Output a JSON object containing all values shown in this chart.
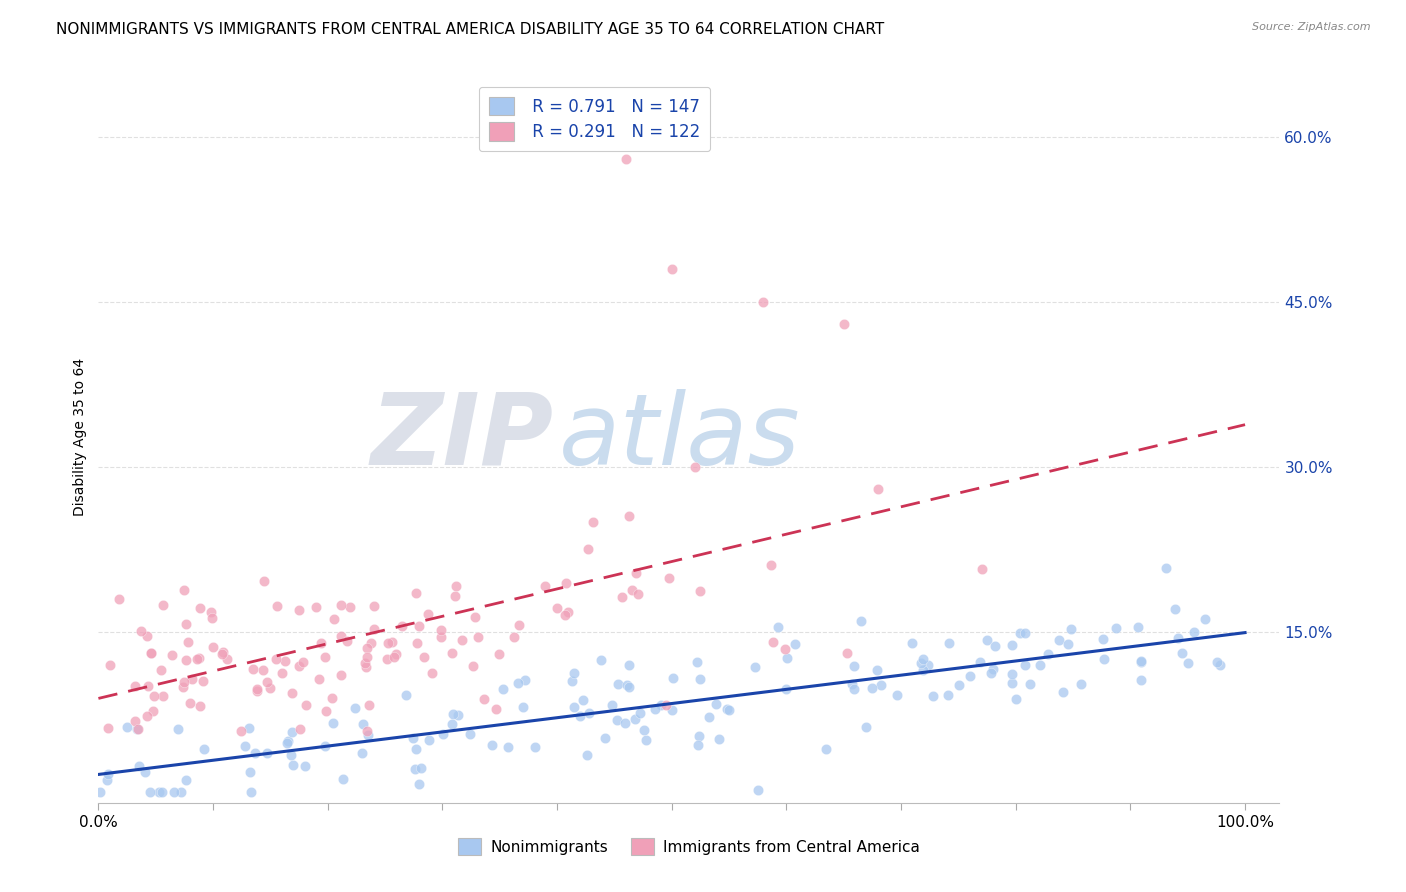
{
  "title": "NONIMMIGRANTS VS IMMIGRANTS FROM CENTRAL AMERICA DISABILITY AGE 35 TO 64 CORRELATION CHART",
  "source": "Source: ZipAtlas.com",
  "ylabel": "Disability Age 35 to 64",
  "legend_label1": "Nonimmigrants",
  "legend_label2": "Immigrants from Central America",
  "R1": 0.791,
  "N1": 147,
  "R2": 0.291,
  "N2": 122,
  "color1": "#a8c8f0",
  "color2": "#f0a0b8",
  "line_color1": "#1a44aa",
  "line_color2": "#cc3355",
  "background_color": "#ffffff",
  "grid_color": "#cccccc",
  "watermark_color_zip": "#c0c8d8",
  "watermark_color_atlas": "#a0c0e0",
  "xlim": [
    0.0,
    1.03
  ],
  "ylim": [
    -0.005,
    0.66
  ],
  "ytick_vals": [
    0.15,
    0.3,
    0.45,
    0.6
  ],
  "ytick_labels": [
    "15.0%",
    "30.0%",
    "45.0%",
    "60.0%"
  ],
  "xtick_vals": [
    0.0,
    0.1,
    0.2,
    0.3,
    0.4,
    0.5,
    0.6,
    0.7,
    0.8,
    0.9,
    1.0
  ],
  "title_fontsize": 11,
  "source_fontsize": 8,
  "tick_fontsize": 11,
  "ylabel_fontsize": 10,
  "legend_fontsize": 12,
  "scatter_size": 55,
  "scatter_alpha": 0.75
}
